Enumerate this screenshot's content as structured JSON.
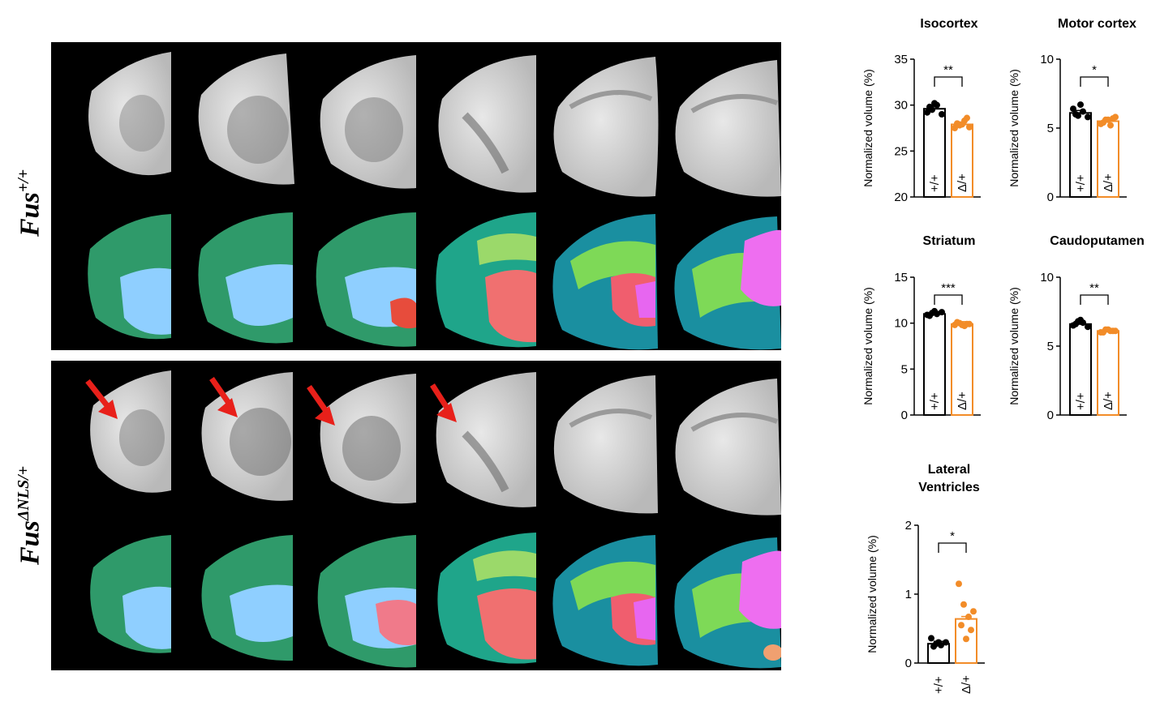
{
  "figure": {
    "row_labels": {
      "top": {
        "base": "Fus",
        "sup": "+/+"
      },
      "bottom": {
        "base": "Fus",
        "sup": "ΔNLS/+"
      }
    },
    "colors": {
      "wt": "#000000",
      "mut": "#f28c28",
      "arrow": "#e8201a",
      "panel_bg": "#000000"
    },
    "mri_slices": [
      "slice-1",
      "slice-2",
      "slice-3",
      "slice-4",
      "slice-5",
      "slice-6"
    ],
    "arrow_slices": [
      1,
      2,
      3,
      4
    ]
  },
  "chart_data": [
    {
      "type": "bar",
      "title": "Isocortex",
      "ylabel": "Normalized volume (%)",
      "ylim": [
        20,
        35
      ],
      "yticks": [
        20,
        25,
        30,
        35
      ],
      "categories": [
        "+/+",
        "Δ/+"
      ],
      "values": [
        29.6,
        27.9
      ],
      "points": [
        [
          29.2,
          29.5,
          30.0,
          29.0,
          29.8,
          30.2
        ],
        [
          27.5,
          27.8,
          28.3,
          27.6,
          28.0,
          27.9,
          28.6
        ]
      ],
      "significance": "**"
    },
    {
      "type": "bar",
      "title": "Motor cortex",
      "ylabel": "Normalized volume (%)",
      "ylim": [
        0,
        10
      ],
      "yticks": [
        0,
        5,
        10
      ],
      "categories": [
        "+/+",
        "Δ/+"
      ],
      "values": [
        6.1,
        5.5
      ],
      "points": [
        [
          6.4,
          5.9,
          6.2,
          5.8,
          6.0,
          6.7
        ],
        [
          5.3,
          5.6,
          5.2,
          5.8,
          5.4,
          5.6,
          5.7
        ]
      ],
      "significance": "*"
    },
    {
      "type": "bar",
      "title": "Striatum",
      "ylabel": "Normalized volume (%)",
      "ylim": [
        0,
        15
      ],
      "yticks": [
        0,
        5,
        10,
        15
      ],
      "categories": [
        "+/+",
        "Δ/+"
      ],
      "values": [
        11.0,
        9.9
      ],
      "points": [
        [
          10.9,
          11.1,
          11.0,
          11.2,
          10.8,
          11.3
        ],
        [
          9.8,
          10.0,
          9.7,
          9.9,
          10.1,
          9.8,
          9.9
        ]
      ],
      "significance": "***"
    },
    {
      "type": "bar",
      "title": "Caudoputamen",
      "ylabel": "Normalized volume (%)",
      "ylim": [
        0,
        10
      ],
      "yticks": [
        0,
        5,
        10
      ],
      "categories": [
        "+/+",
        "Δ/+"
      ],
      "values": [
        6.6,
        6.1
      ],
      "points": [
        [
          6.5,
          6.8,
          6.7,
          6.4,
          6.6,
          6.9
        ],
        [
          6.0,
          6.2,
          6.1,
          6.1,
          6.0,
          6.2,
          6.1
        ]
      ],
      "significance": "**"
    },
    {
      "type": "bar",
      "title": "Lateral\nVentricles",
      "ylabel": "Normalized volume (%)",
      "ylim": [
        0,
        2
      ],
      "yticks": [
        0,
        1,
        2
      ],
      "categories": [
        "+/+",
        "Δ/+"
      ],
      "values": [
        0.28,
        0.64
      ],
      "points": [
        [
          0.36,
          0.28,
          0.26,
          0.3,
          0.24,
          0.3
        ],
        [
          1.15,
          0.85,
          0.67,
          0.75,
          0.55,
          0.35,
          0.48
        ]
      ],
      "significance": "*"
    }
  ]
}
